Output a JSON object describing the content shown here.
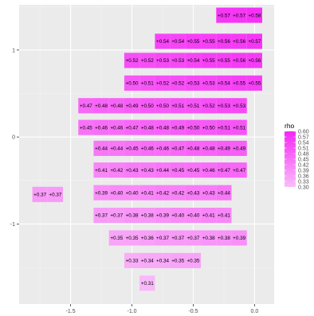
{
  "chart_data": {
    "type": "heatmap",
    "title": "",
    "xlabel": "",
    "ylabel": "",
    "xlim": [
      -1.92,
      0.16
    ],
    "ylim": [
      -1.92,
      1.52
    ],
    "x_ticks": [
      -1.5,
      -1.0,
      -0.5,
      0.0
    ],
    "x_tick_labels": [
      "-1.5",
      "-1.0",
      "-0.5",
      "0.0"
    ],
    "y_ticks": [
      -1,
      0,
      1
    ],
    "y_tick_labels": [
      "-1",
      "0",
      "1"
    ],
    "cell_width": 0.125,
    "cell_height": 0.175,
    "grid": true,
    "legend": {
      "title": "rho",
      "position": "right",
      "min": 0.3,
      "max": 0.6,
      "low_color": "#f9bdf9",
      "high_color": "#f527f5",
      "labels": [
        "0.60",
        "0.57",
        "0.54",
        "0.51",
        "0.48",
        "0.45",
        "0.42",
        "0.39",
        "0.36",
        "0.33",
        "0.30"
      ]
    },
    "rows": [
      {
        "y": 1.4,
        "x_start": -0.25,
        "values": [
          0.57,
          0.57,
          0.58
        ],
        "labels": [
          "+0.57",
          "+0.57",
          "+0.58"
        ]
      },
      {
        "y": 1.1,
        "x_start": -0.75,
        "values": [
          0.54,
          0.54,
          0.55,
          0.55,
          0.56,
          0.56,
          0.57
        ],
        "labels": [
          "+0.54",
          "+0.54",
          "+0.55",
          "+0.55",
          "+0.56",
          "+0.56",
          "+0.57"
        ]
      },
      {
        "y": 0.88,
        "x_start": -1.0,
        "values": [
          0.52,
          0.52,
          0.53,
          0.53,
          0.54,
          0.55,
          0.55,
          0.56,
          0.56
        ],
        "labels": [
          "+0.52",
          "+0.52",
          "+0.53",
          "+0.53",
          "+0.54",
          "+0.55",
          "+0.55",
          "+0.56",
          "+0.56"
        ]
      },
      {
        "y": 0.62,
        "x_start": -1.0,
        "values": [
          0.5,
          0.51,
          0.52,
          0.52,
          0.53,
          0.53,
          0.54,
          0.55,
          0.55
        ],
        "labels": [
          "+0.50",
          "+0.51",
          "+0.52",
          "+0.52",
          "+0.53",
          "+0.53",
          "+0.54",
          "+0.55",
          "+0.55"
        ]
      },
      {
        "y": 0.36,
        "x_start": -1.375,
        "values": [
          0.47,
          0.48,
          0.48,
          0.49,
          0.5,
          0.5,
          0.51,
          0.51,
          0.52,
          0.53,
          0.53
        ],
        "labels": [
          "+0.47",
          "+0.48",
          "+0.48",
          "+0.49",
          "+0.50",
          "+0.50",
          "+0.51",
          "+0.51",
          "+0.52",
          "+0.53",
          "+0.53"
        ]
      },
      {
        "y": 0.11,
        "x_start": -1.375,
        "values": [
          0.45,
          0.46,
          0.46,
          0.47,
          0.48,
          0.48,
          0.49,
          0.5,
          0.5,
          0.51,
          0.51
        ],
        "labels": [
          "+0.45",
          "+0.46",
          "+0.46",
          "+0.47",
          "+0.48",
          "+0.48",
          "+0.49",
          "+0.50",
          "+0.50",
          "+0.51",
          "+0.51"
        ]
      },
      {
        "y": -0.13,
        "x_start": -1.25,
        "values": [
          0.44,
          0.44,
          0.45,
          0.46,
          0.46,
          0.47,
          0.48,
          0.48,
          0.49,
          0.49
        ],
        "labels": [
          "+0.44",
          "+0.44",
          "+0.45",
          "+0.46",
          "+0.46",
          "+0.47",
          "+0.48",
          "+0.48",
          "+0.49",
          "+0.49"
        ]
      },
      {
        "y": -0.38,
        "x_start": -1.25,
        "values": [
          0.41,
          0.42,
          0.43,
          0.43,
          0.44,
          0.45,
          0.45,
          0.46,
          0.47,
          0.47
        ],
        "labels": [
          "+0.41",
          "+0.42",
          "+0.43",
          "+0.43",
          "+0.44",
          "+0.45",
          "+0.45",
          "+0.46",
          "+0.47",
          "+0.47"
        ]
      },
      {
        "y": -0.64,
        "x_start": -1.25,
        "values": [
          0.39,
          0.4,
          0.4,
          0.41,
          0.42,
          0.42,
          0.43,
          0.43,
          0.44
        ],
        "labels": [
          "+0.39",
          "+0.40",
          "+0.40",
          "+0.41",
          "+0.42",
          "+0.42",
          "+0.43",
          "+0.43",
          "+0.44"
        ]
      },
      {
        "y": -0.66,
        "x_start": -1.75,
        "values": [
          0.37,
          0.37
        ],
        "labels": [
          "+0.37",
          "+0.37"
        ]
      },
      {
        "y": -0.9,
        "x_start": -1.25,
        "values": [
          0.37,
          0.37,
          0.38,
          0.38,
          0.39,
          0.4,
          0.4,
          0.41,
          0.41
        ],
        "labels": [
          "+0.37",
          "+0.37",
          "+0.38",
          "+0.38",
          "+0.39",
          "+0.40",
          "+0.40",
          "+0.41",
          "+0.41"
        ]
      },
      {
        "y": -1.16,
        "x_start": -1.125,
        "values": [
          0.35,
          0.35,
          0.36,
          0.37,
          0.37,
          0.37,
          0.38,
          0.38,
          0.39
        ],
        "labels": [
          "+0.35",
          "+0.35",
          "+0.36",
          "+0.37",
          "+0.37",
          "+0.37",
          "+0.38",
          "+0.38",
          "+0.39"
        ]
      },
      {
        "y": -1.42,
        "x_start": -1.0,
        "values": [
          0.33,
          0.34,
          0.34,
          0.35,
          0.35
        ],
        "labels": [
          "+0.33",
          "+0.34",
          "+0.34",
          "+0.35",
          "+0.35"
        ]
      },
      {
        "y": -1.68,
        "x_start": -0.875,
        "values": [
          0.31
        ],
        "labels": [
          "+0.31"
        ]
      }
    ]
  }
}
